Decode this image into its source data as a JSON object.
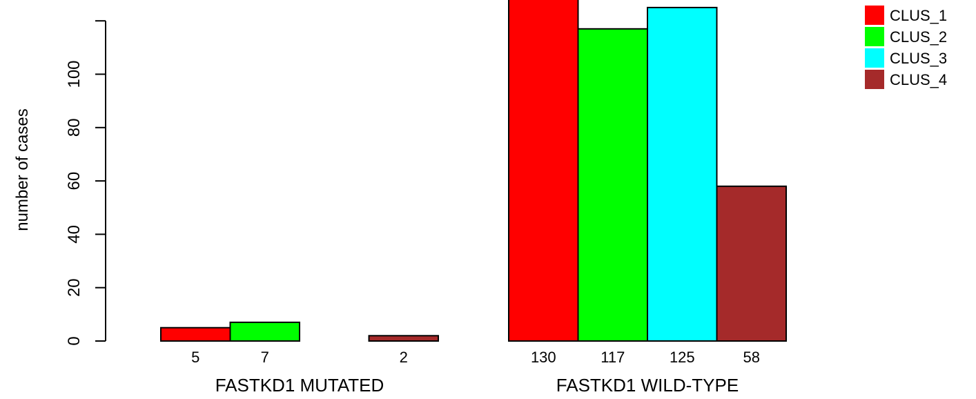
{
  "chart_data": {
    "type": "bar",
    "title": "",
    "xlabel": "",
    "ylabel": "number of cases",
    "ylim": [
      0,
      120
    ],
    "yticks": [
      0,
      20,
      40,
      60,
      80,
      100
    ],
    "grid": false,
    "legend_position": "top-right",
    "groups": [
      {
        "label": "FASTKD1 MUTATED",
        "values": [
          5,
          7,
          0,
          2
        ],
        "value_labels": [
          "5",
          "7",
          "",
          "2"
        ]
      },
      {
        "label": "FASTKD1 WILD-TYPE",
        "values": [
          130,
          117,
          125,
          58
        ],
        "value_labels": [
          "130",
          "117",
          "125",
          "58"
        ]
      }
    ],
    "series": [
      {
        "name": "CLUS_1",
        "color": "#ff0000"
      },
      {
        "name": "CLUS_2",
        "color": "#00ff00"
      },
      {
        "name": "CLUS_3",
        "color": "#00ffff"
      },
      {
        "name": "CLUS_4",
        "color": "#a52a2a"
      }
    ]
  }
}
